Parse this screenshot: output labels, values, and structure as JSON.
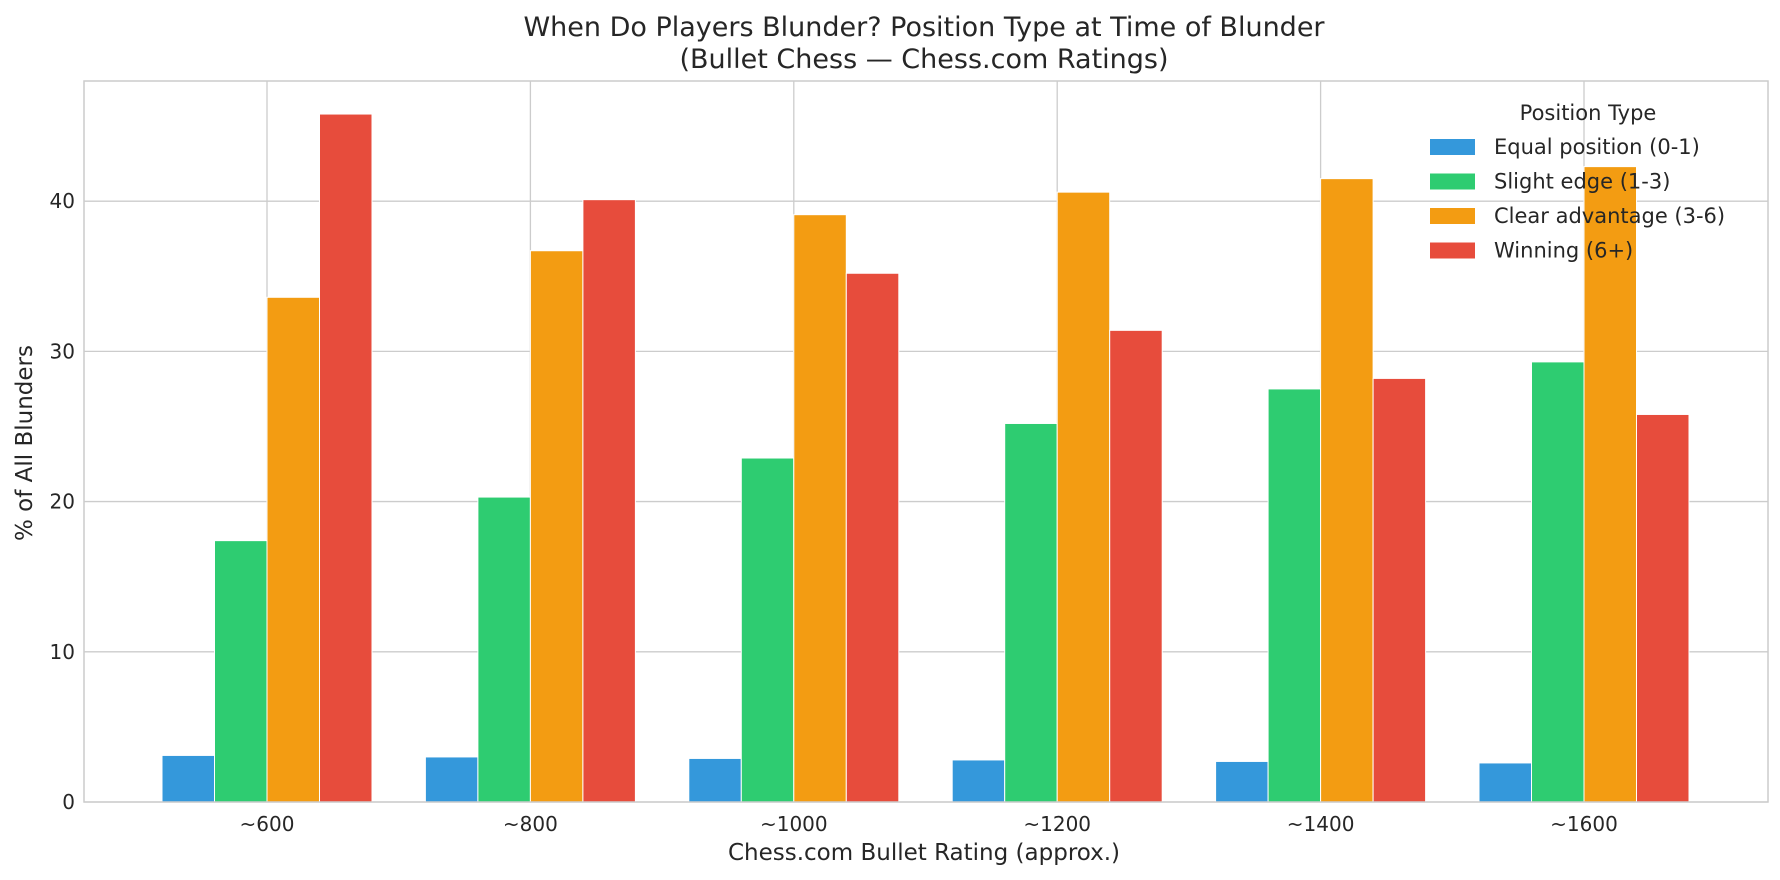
{
  "chart_data": {
    "type": "bar",
    "title": "When Do Players Blunder? Position Type at Time of Blunder",
    "subtitle": "(Bullet Chess — Chess.com Ratings)",
    "xlabel": "Chess.com Bullet Rating (approx.)",
    "ylabel": "% of All Blunders",
    "categories": [
      "~600",
      "~800",
      "~1000",
      "~1200",
      "~1400",
      "~1600"
    ],
    "ylim": [
      0,
      48
    ],
    "yticks": [
      0,
      10,
      20,
      30,
      40
    ],
    "grid": true,
    "legend": {
      "title": "Position Type",
      "placement": "top-right"
    },
    "series": [
      {
        "name": "Equal position (0-1)",
        "color": "#3498db",
        "values": [
          3.1,
          3.0,
          2.9,
          2.8,
          2.7,
          2.6
        ]
      },
      {
        "name": "Slight edge (1-3)",
        "color": "#2ecc71",
        "values": [
          17.4,
          20.3,
          22.9,
          25.2,
          27.5,
          29.3
        ]
      },
      {
        "name": "Clear advantage (3-6)",
        "color": "#f39c12",
        "values": [
          33.6,
          36.7,
          39.1,
          40.6,
          41.5,
          42.3
        ]
      },
      {
        "name": "Winning (6+)",
        "color": "#e74c3c",
        "values": [
          45.8,
          40.1,
          35.2,
          31.4,
          28.2,
          25.8
        ]
      }
    ]
  }
}
